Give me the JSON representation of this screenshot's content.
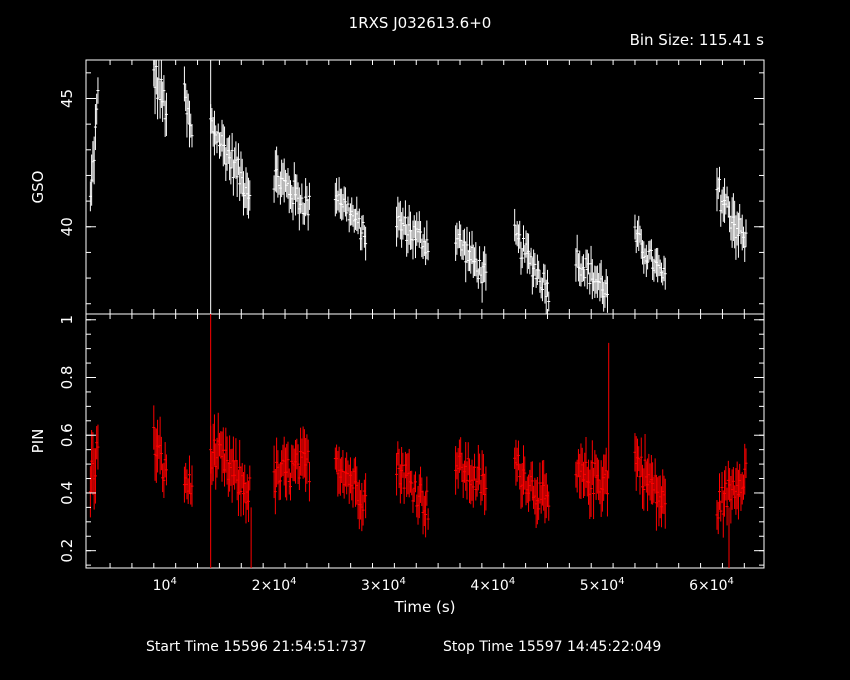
{
  "title": "1RXS J032613.6+0",
  "bin_size": "Bin Size: 115.41 s",
  "footer": {
    "start": "Start Time 15596 21:54:51:737",
    "stop": "Stop Time 15597 14:45:22:049"
  },
  "chart_data": [
    {
      "type": "scatter",
      "panel": "top",
      "ylabel": "GSO",
      "xlim": [
        2800,
        64800
      ],
      "ylim": [
        36.6,
        46.5
      ],
      "yticks": [
        40,
        45
      ],
      "ytick_labels": [
        "40",
        "45"
      ],
      "color": "#ffffff",
      "segments": [
        {
          "x0": 3200,
          "x1": 3900,
          "y0": 41.0,
          "y1": 45.0,
          "yerr": 1.0
        },
        {
          "x0": 9000,
          "x1": 10200,
          "y0": 46.0,
          "y1": 44.5,
          "yerr": 1.2
        },
        {
          "x0": 11800,
          "x1": 12600,
          "y0": 45.0,
          "y1": 43.2,
          "yerr": 1.0
        },
        {
          "x0": 14200,
          "x1": 17800,
          "y0": 44.0,
          "y1": 41.3,
          "yerr": 0.9
        },
        {
          "x0": 20000,
          "x1": 23300,
          "y0": 42.0,
          "y1": 40.7,
          "yerr": 0.9
        },
        {
          "x0": 25600,
          "x1": 28400,
          "y0": 41.4,
          "y1": 39.6,
          "yerr": 0.7
        },
        {
          "x0": 31200,
          "x1": 34200,
          "y0": 40.2,
          "y1": 39.3,
          "yerr": 0.8
        },
        {
          "x0": 36600,
          "x1": 39400,
          "y0": 39.6,
          "y1": 38.0,
          "yerr": 0.8
        },
        {
          "x0": 42000,
          "x1": 45200,
          "y0": 39.6,
          "y1": 37.5,
          "yerr": 0.8
        },
        {
          "x0": 47600,
          "x1": 50600,
          "y0": 38.8,
          "y1": 37.4,
          "yerr": 0.8
        },
        {
          "x0": 53000,
          "x1": 55800,
          "y0": 39.6,
          "y1": 37.9,
          "yerr": 0.7
        },
        {
          "x0": 60500,
          "x1": 63200,
          "y0": 41.5,
          "y1": 39.3,
          "yerr": 1.0
        }
      ],
      "flare": {
        "x": 14200,
        "y0": 36.6,
        "y1": 46.5
      }
    },
    {
      "type": "scatter",
      "panel": "bottom",
      "ylabel": "PIN",
      "xlabel": "Time (s)",
      "xlim": [
        2800,
        64800
      ],
      "ylim": [
        0.14,
        1.02
      ],
      "yticks": [
        0.2,
        0.4,
        0.6,
        0.8,
        1
      ],
      "ytick_labels": [
        "0.2",
        "0.4",
        "0.6",
        "0.8",
        "1"
      ],
      "xticks": [
        10000,
        20000,
        30000,
        40000,
        50000,
        60000
      ],
      "xtick_labels": [
        {
          "mant": "10",
          "exp": "4"
        },
        {
          "mant": "2×10",
          "exp": "4"
        },
        {
          "mant": "3×10",
          "exp": "4"
        },
        {
          "mant": "4×10",
          "exp": "4"
        },
        {
          "mant": "5×10",
          "exp": "4"
        },
        {
          "mant": "6×10",
          "exp": "4"
        }
      ],
      "color": "#ff0000",
      "segments": [
        {
          "x0": 3200,
          "x1": 3900,
          "y0": 0.45,
          "y1": 0.55,
          "yerr": 0.12
        },
        {
          "x0": 9000,
          "x1": 10200,
          "y0": 0.58,
          "y1": 0.45,
          "yerr": 0.1
        },
        {
          "x0": 11800,
          "x1": 12600,
          "y0": 0.45,
          "y1": 0.4,
          "yerr": 0.08
        },
        {
          "x0": 14200,
          "x1": 17800,
          "y0": 0.55,
          "y1": 0.4,
          "yerr": 0.1
        },
        {
          "x0": 20000,
          "x1": 23300,
          "y0": 0.45,
          "y1": 0.5,
          "yerr": 0.1
        },
        {
          "x0": 25600,
          "x1": 28400,
          "y0": 0.52,
          "y1": 0.38,
          "yerr": 0.09
        },
        {
          "x0": 31200,
          "x1": 34200,
          "y0": 0.5,
          "y1": 0.35,
          "yerr": 0.09
        },
        {
          "x0": 36600,
          "x1": 39400,
          "y0": 0.5,
          "y1": 0.42,
          "yerr": 0.09
        },
        {
          "x0": 42000,
          "x1": 45200,
          "y0": 0.5,
          "y1": 0.35,
          "yerr": 0.09
        },
        {
          "x0": 47600,
          "x1": 50600,
          "y0": 0.45,
          "y1": 0.45,
          "yerr": 0.1
        },
        {
          "x0": 53000,
          "x1": 55800,
          "y0": 0.52,
          "y1": 0.35,
          "yerr": 0.1
        },
        {
          "x0": 60500,
          "x1": 63200,
          "y0": 0.35,
          "y1": 0.48,
          "yerr": 0.09
        }
      ],
      "flare": {
        "x": 14200,
        "y0": 0.14,
        "y1": 1.02
      },
      "spikes": [
        {
          "x": 50600,
          "y": 0.92
        },
        {
          "x": 17900,
          "y": 0.12
        },
        {
          "x": 61600,
          "y": 0.12
        }
      ]
    }
  ]
}
